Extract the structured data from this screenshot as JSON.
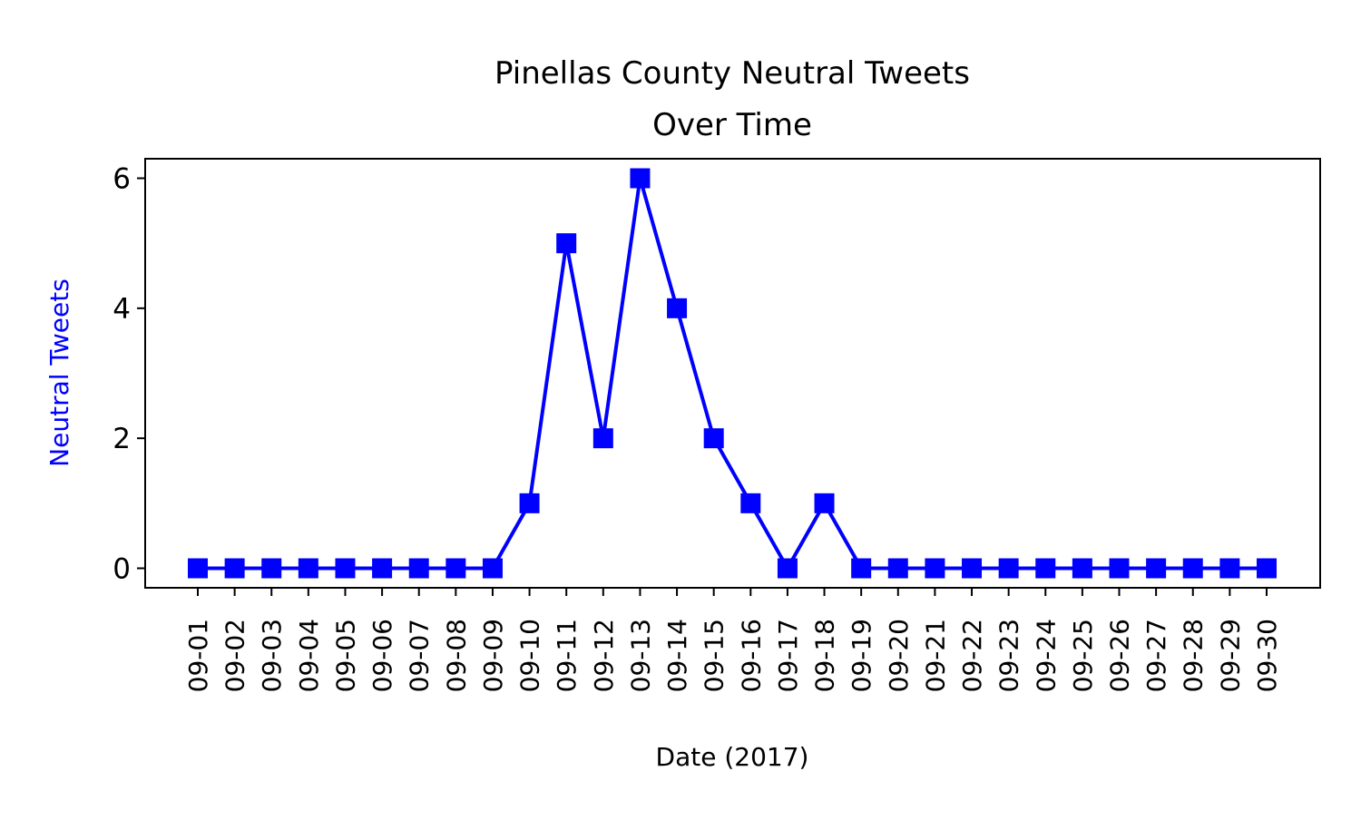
{
  "chart_data": {
    "type": "line",
    "title_line1": "Pinellas County Neutral Tweets",
    "title_line2": "Over Time",
    "xlabel": "Date (2017)",
    "ylabel": "Neutral Tweets",
    "ylabel_color": "#0000ff",
    "line_color": "#0000ff",
    "marker": "square",
    "ylim": [
      -0.3,
      6.3
    ],
    "yticks": [
      0,
      2,
      4,
      6
    ],
    "grid": false,
    "categories": [
      "09-01",
      "09-02",
      "09-03",
      "09-04",
      "09-05",
      "09-06",
      "09-07",
      "09-08",
      "09-09",
      "09-10",
      "09-11",
      "09-12",
      "09-13",
      "09-14",
      "09-15",
      "09-16",
      "09-17",
      "09-18",
      "09-19",
      "09-20",
      "09-21",
      "09-22",
      "09-23",
      "09-24",
      "09-25",
      "09-26",
      "09-27",
      "09-28",
      "09-29",
      "09-30"
    ],
    "series": [
      {
        "values": [
          0,
          0,
          0,
          0,
          0,
          0,
          0,
          0,
          0,
          1,
          5,
          2,
          6,
          4,
          2,
          1,
          0,
          1,
          0,
          0,
          0,
          0,
          0,
          0,
          0,
          0,
          0,
          0,
          0,
          0
        ]
      }
    ]
  }
}
